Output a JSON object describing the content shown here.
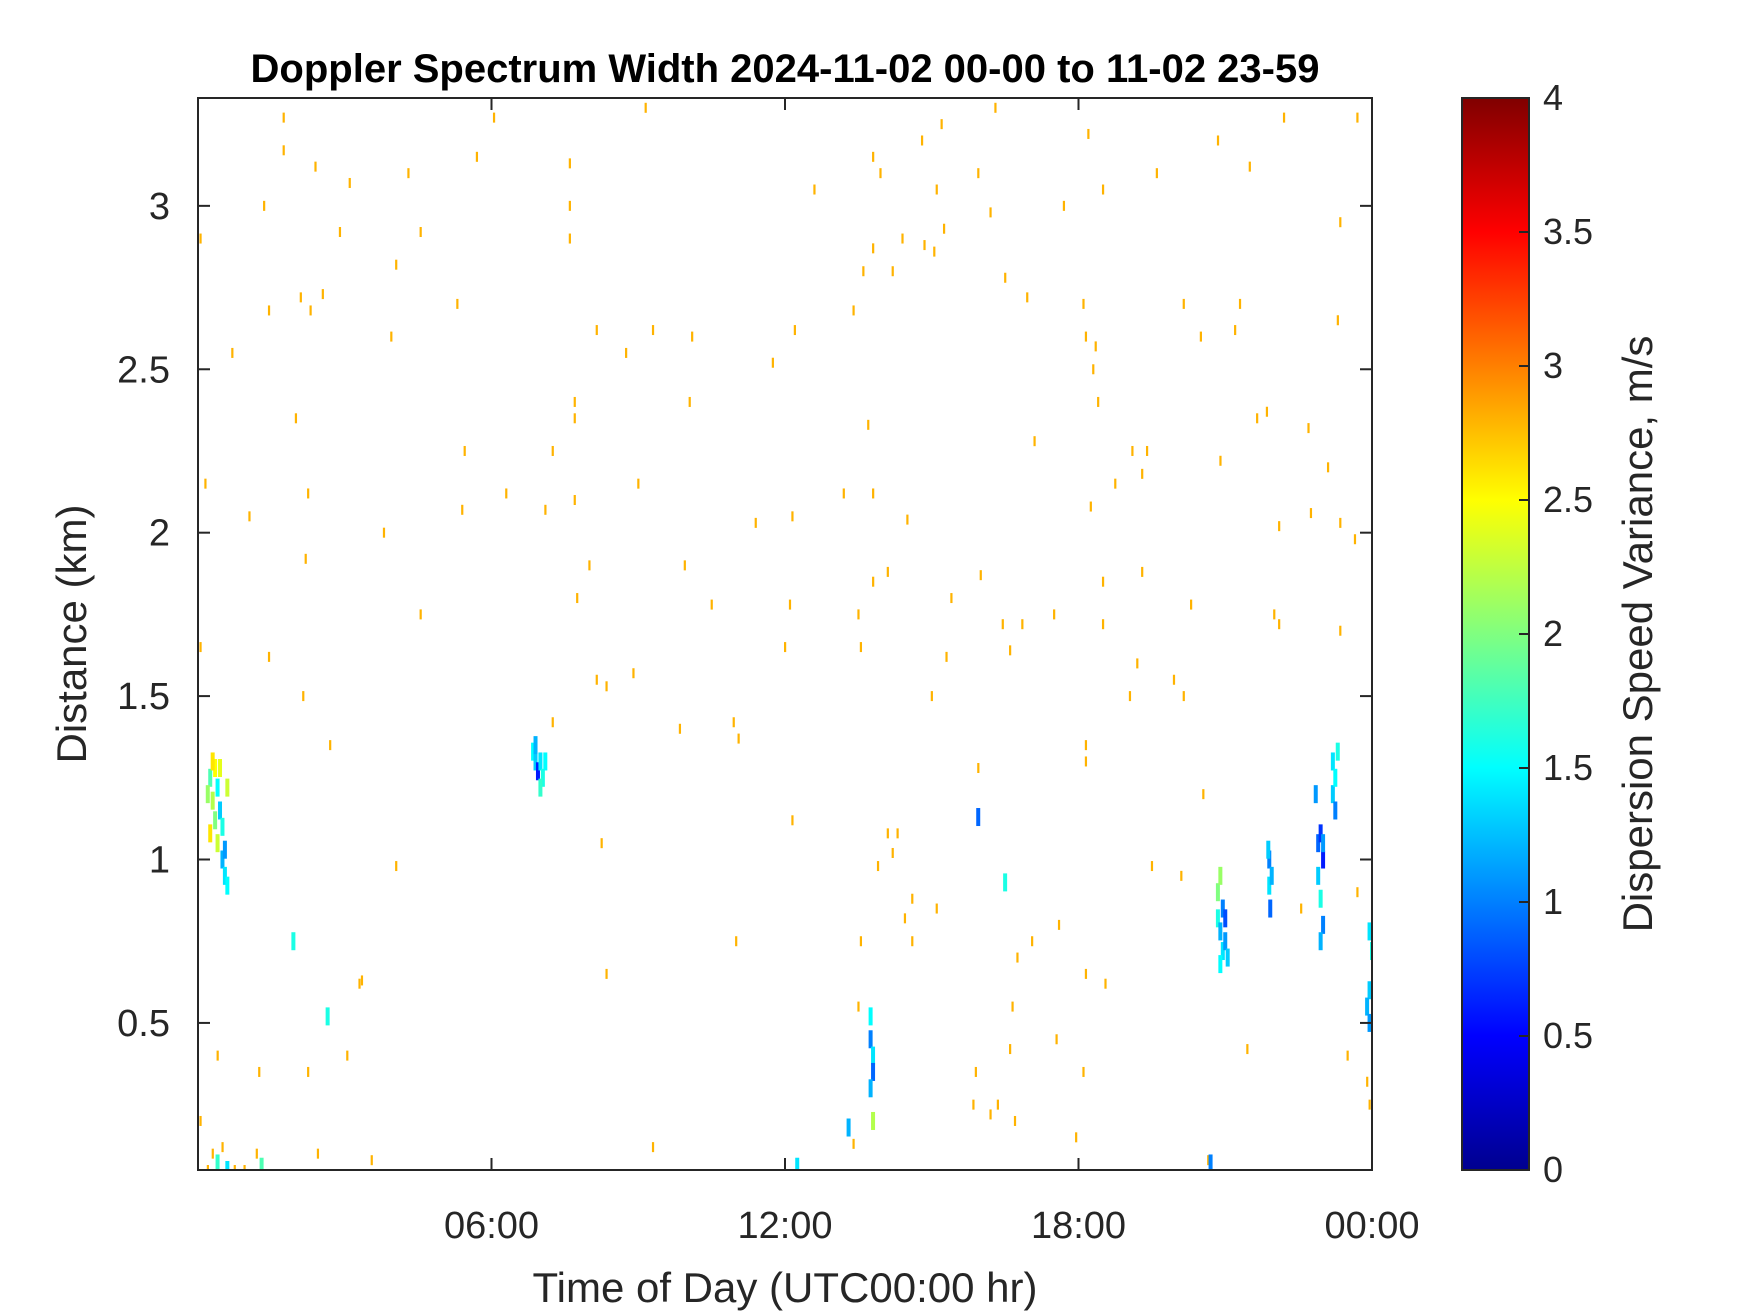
{
  "chart_data": {
    "type": "heatmap",
    "title": "Doppler Spectrum Width 2024-11-02 00-00 to 11-02 23-59",
    "xlabel": "Time of Day (UTC00:00 hr)",
    "ylabel": "Distance (km)",
    "xlim": [
      0,
      24
    ],
    "ylim": [
      0.05,
      3.33
    ],
    "x_ticks": [
      6,
      12,
      18,
      24
    ],
    "x_tick_labels": [
      "06:00",
      "12:00",
      "18:00",
      "00:00"
    ],
    "y_ticks": [
      0.5,
      1,
      1.5,
      2,
      2.5,
      3
    ],
    "y_tick_labels": [
      "0.5",
      "1",
      "1.5",
      "2",
      "2.5",
      "3"
    ],
    "grid": false,
    "colormap": "jet",
    "colorbar": {
      "label": "Dispersion Speed Variance, m/s",
      "range": [
        0,
        4
      ],
      "ticks": [
        0,
        0.5,
        1,
        1.5,
        2,
        2.5,
        3,
        3.5,
        4
      ],
      "tick_labels": [
        "0",
        "0.5",
        "1",
        "1.5",
        "2",
        "2.5",
        "3",
        "3.5",
        "4"
      ]
    },
    "scatter_value": 2.8,
    "scatter_points": [
      [
        1.75,
        3.27
      ],
      [
        1.75,
        3.17
      ],
      [
        1.35,
        3.0
      ],
      [
        2.4,
        3.12
      ],
      [
        3.1,
        3.07
      ],
      [
        2.9,
        2.92
      ],
      [
        4.3,
        3.1
      ],
      [
        4.55,
        2.92
      ],
      [
        4.05,
        2.82
      ],
      [
        5.7,
        3.15
      ],
      [
        6.05,
        3.27
      ],
      [
        7.6,
        3.13
      ],
      [
        7.6,
        3.0
      ],
      [
        7.6,
        2.9
      ],
      [
        9.15,
        3.3
      ],
      [
        12.6,
        3.05
      ],
      [
        13.8,
        3.15
      ],
      [
        13.95,
        3.1
      ],
      [
        14.8,
        3.2
      ],
      [
        15.2,
        3.25
      ],
      [
        15.1,
        3.05
      ],
      [
        15.95,
        3.1
      ],
      [
        16.3,
        3.3
      ],
      [
        14.4,
        2.9
      ],
      [
        14.85,
        2.88
      ],
      [
        15.25,
        2.93
      ],
      [
        16.2,
        2.98
      ],
      [
        17.7,
        3.0
      ],
      [
        18.2,
        3.22
      ],
      [
        18.5,
        3.05
      ],
      [
        19.6,
        3.1
      ],
      [
        20.85,
        3.2
      ],
      [
        21.5,
        3.12
      ],
      [
        22.2,
        3.27
      ],
      [
        23.7,
        3.27
      ],
      [
        23.35,
        2.95
      ],
      [
        0.05,
        2.9
      ],
      [
        1.45,
        2.68
      ],
      [
        2.1,
        2.72
      ],
      [
        2.3,
        2.68
      ],
      [
        2.55,
        2.73
      ],
      [
        3.95,
        2.6
      ],
      [
        5.3,
        2.7
      ],
      [
        8.15,
        2.62
      ],
      [
        9.3,
        2.62
      ],
      [
        10.1,
        2.6
      ],
      [
        8.75,
        2.55
      ],
      [
        11.75,
        2.52
      ],
      [
        12.2,
        2.62
      ],
      [
        13.4,
        2.68
      ],
      [
        13.6,
        2.8
      ],
      [
        13.8,
        2.87
      ],
      [
        14.2,
        2.8
      ],
      [
        15.05,
        2.86
      ],
      [
        16.5,
        2.78
      ],
      [
        16.95,
        2.72
      ],
      [
        18.15,
        2.6
      ],
      [
        18.1,
        2.7
      ],
      [
        18.35,
        2.57
      ],
      [
        20.15,
        2.7
      ],
      [
        20.5,
        2.6
      ],
      [
        21.3,
        2.7
      ],
      [
        21.2,
        2.62
      ],
      [
        23.3,
        2.65
      ],
      [
        0.7,
        2.55
      ],
      [
        2.0,
        2.35
      ],
      [
        7.7,
        2.4
      ],
      [
        7.7,
        2.35
      ],
      [
        10.05,
        2.4
      ],
      [
        13.7,
        2.33
      ],
      [
        18.3,
        2.5
      ],
      [
        18.4,
        2.4
      ],
      [
        17.1,
        2.28
      ],
      [
        19.4,
        2.25
      ],
      [
        20.9,
        2.22
      ],
      [
        21.85,
        2.37
      ],
      [
        22.7,
        2.32
      ],
      [
        21.65,
        2.35
      ],
      [
        5.45,
        2.25
      ],
      [
        7.25,
        2.25
      ],
      [
        1.05,
        2.05
      ],
      [
        2.25,
        2.12
      ],
      [
        0.15,
        2.15
      ],
      [
        3.8,
        2.0
      ],
      [
        5.4,
        2.07
      ],
      [
        6.3,
        2.12
      ],
      [
        7.1,
        2.07
      ],
      [
        7.7,
        2.1
      ],
      [
        9.0,
        2.15
      ],
      [
        11.4,
        2.03
      ],
      [
        12.15,
        2.05
      ],
      [
        13.2,
        2.12
      ],
      [
        13.8,
        2.12
      ],
      [
        14.5,
        2.04
      ],
      [
        18.25,
        2.08
      ],
      [
        18.75,
        2.15
      ],
      [
        19.1,
        2.25
      ],
      [
        19.3,
        2.18
      ],
      [
        22.1,
        2.02
      ],
      [
        22.75,
        2.06
      ],
      [
        23.1,
        2.2
      ],
      [
        23.35,
        2.03
      ],
      [
        23.65,
        1.98
      ],
      [
        24.0,
        2.13
      ],
      [
        2.2,
        1.92
      ],
      [
        4.55,
        1.75
      ],
      [
        8.0,
        1.9
      ],
      [
        7.75,
        1.8
      ],
      [
        9.95,
        1.9
      ],
      [
        10.5,
        1.78
      ],
      [
        12.1,
        1.78
      ],
      [
        13.5,
        1.75
      ],
      [
        13.8,
        1.85
      ],
      [
        14.1,
        1.88
      ],
      [
        15.4,
        1.8
      ],
      [
        16.0,
        1.87
      ],
      [
        16.85,
        1.72
      ],
      [
        17.5,
        1.75
      ],
      [
        18.5,
        1.72
      ],
      [
        18.5,
        1.85
      ],
      [
        19.3,
        1.88
      ],
      [
        20.3,
        1.78
      ],
      [
        22.0,
        1.75
      ],
      [
        22.1,
        1.72
      ],
      [
        23.35,
        1.7
      ],
      [
        0.05,
        1.65
      ],
      [
        1.45,
        1.62
      ],
      [
        12.0,
        1.65
      ],
      [
        13.55,
        1.65
      ],
      [
        15.3,
        1.62
      ],
      [
        16.6,
        1.64
      ],
      [
        16.45,
        1.72
      ],
      [
        19.2,
        1.6
      ],
      [
        8.15,
        1.55
      ],
      [
        8.35,
        1.53
      ],
      [
        8.9,
        1.57
      ],
      [
        2.15,
        1.5
      ],
      [
        10.95,
        1.42
      ],
      [
        15.0,
        1.5
      ],
      [
        19.05,
        1.5
      ],
      [
        19.95,
        1.55
      ],
      [
        20.15,
        1.5
      ],
      [
        9.85,
        1.4
      ],
      [
        11.05,
        1.37
      ],
      [
        7.25,
        1.42
      ],
      [
        2.7,
        1.35
      ],
      [
        18.15,
        1.35
      ],
      [
        18.15,
        1.3
      ],
      [
        15.95,
        1.28
      ],
      [
        12.15,
        1.12
      ],
      [
        20.55,
        1.2
      ],
      [
        8.25,
        1.05
      ],
      [
        4.05,
        0.98
      ],
      [
        19.5,
        0.98
      ],
      [
        20.1,
        0.95
      ],
      [
        13.9,
        0.98
      ],
      [
        14.1,
        1.08
      ],
      [
        14.3,
        1.08
      ],
      [
        14.2,
        1.02
      ],
      [
        14.45,
        0.82
      ],
      [
        14.6,
        0.88
      ],
      [
        14.6,
        0.75
      ],
      [
        13.55,
        0.75
      ],
      [
        11.0,
        0.75
      ],
      [
        15.1,
        0.85
      ],
      [
        17.05,
        0.75
      ],
      [
        17.6,
        0.8
      ],
      [
        18.15,
        0.65
      ],
      [
        18.55,
        0.62
      ],
      [
        23.7,
        0.9
      ],
      [
        22.55,
        0.85
      ],
      [
        8.35,
        0.65
      ],
      [
        3.3,
        0.62
      ],
      [
        3.35,
        0.63
      ],
      [
        13.5,
        0.55
      ],
      [
        16.75,
        0.7
      ],
      [
        16.65,
        0.55
      ],
      [
        21.45,
        0.42
      ],
      [
        17.55,
        0.45
      ],
      [
        18.1,
        0.35
      ],
      [
        16.6,
        0.42
      ],
      [
        15.9,
        0.35
      ],
      [
        2.25,
        0.35
      ],
      [
        1.25,
        0.35
      ],
      [
        3.05,
        0.4
      ],
      [
        0.4,
        0.4
      ],
      [
        15.85,
        0.25
      ],
      [
        16.2,
        0.22
      ],
      [
        16.35,
        0.25
      ],
      [
        16.7,
        0.2
      ],
      [
        17.95,
        0.15
      ],
      [
        9.3,
        0.12
      ],
      [
        13.4,
        0.13
      ],
      [
        2.45,
        0.1
      ],
      [
        3.55,
        0.08
      ],
      [
        20.65,
        0.08
      ],
      [
        23.5,
        0.4
      ],
      [
        23.9,
        0.32
      ],
      [
        23.95,
        0.25
      ],
      [
        24.0,
        0.1
      ],
      [
        0.05,
        0.2
      ],
      [
        0.3,
        0.1
      ],
      [
        0.5,
        0.12
      ],
      [
        0.75,
        0.05
      ],
      [
        0.95,
        0.05
      ],
      [
        1.2,
        0.1
      ],
      [
        0.2,
        0.05
      ],
      [
        0.6,
        0.06
      ]
    ],
    "echo_cells": [
      [
        0.25,
        1.25,
        1.8
      ],
      [
        0.3,
        1.18,
        2.2
      ],
      [
        0.35,
        1.12,
        2.0
      ],
      [
        0.4,
        1.22,
        1.5
      ],
      [
        0.4,
        1.05,
        2.3
      ],
      [
        0.45,
        1.28,
        2.4
      ],
      [
        0.45,
        1.15,
        1.3
      ],
      [
        0.5,
        1.1,
        1.6
      ],
      [
        0.5,
        1.0,
        1.2
      ],
      [
        0.55,
        0.95,
        1.4
      ],
      [
        0.55,
        1.03,
        1.1
      ],
      [
        0.6,
        0.92,
        1.5
      ],
      [
        0.6,
        1.22,
        2.3
      ],
      [
        0.35,
        1.28,
        2.5
      ],
      [
        0.3,
        1.3,
        2.6
      ],
      [
        0.2,
        1.2,
        2.1
      ],
      [
        0.25,
        1.08,
        2.6
      ],
      [
        6.85,
        1.33,
        1.5
      ],
      [
        6.9,
        1.3,
        1.3
      ],
      [
        6.95,
        1.27,
        0.6
      ],
      [
        7.0,
        1.3,
        1.4
      ],
      [
        7.05,
        1.25,
        1.6
      ],
      [
        7.1,
        1.3,
        1.5
      ],
      [
        6.9,
        1.35,
        1.2
      ],
      [
        7.0,
        1.22,
        1.7
      ],
      [
        1.95,
        0.75,
        1.6
      ],
      [
        2.65,
        0.52,
        1.6
      ],
      [
        15.95,
        1.13,
        0.9
      ],
      [
        16.5,
        0.93,
        1.6
      ],
      [
        13.75,
        0.52,
        1.5
      ],
      [
        13.75,
        0.45,
        1.0
      ],
      [
        13.8,
        0.4,
        1.4
      ],
      [
        13.8,
        0.35,
        0.9
      ],
      [
        13.75,
        0.3,
        1.2
      ],
      [
        13.8,
        0.2,
        2.2
      ],
      [
        13.3,
        0.18,
        1.2
      ],
      [
        20.7,
        0.07,
        1.0
      ],
      [
        12.25,
        0.06,
        1.4
      ],
      [
        0.4,
        0.07,
        1.7
      ],
      [
        0.6,
        0.05,
        1.4
      ],
      [
        1.3,
        0.06,
        1.8
      ],
      [
        20.85,
        0.9,
        2.0
      ],
      [
        20.85,
        0.82,
        1.6
      ],
      [
        20.9,
        0.78,
        1.2
      ],
      [
        20.95,
        0.85,
        1.0
      ],
      [
        20.95,
        0.72,
        1.4
      ],
      [
        21.0,
        0.82,
        0.8
      ],
      [
        21.0,
        0.75,
        1.1
      ],
      [
        21.05,
        0.7,
        1.3
      ],
      [
        20.9,
        0.68,
        1.5
      ],
      [
        20.9,
        0.95,
        2.1
      ],
      [
        21.9,
        1.0,
        1.0
      ],
      [
        21.9,
        0.92,
        1.4
      ],
      [
        21.92,
        0.85,
        0.9
      ],
      [
        21.95,
        0.95,
        1.2
      ],
      [
        21.88,
        1.03,
        1.3
      ],
      [
        22.85,
        1.2,
        1.1
      ],
      [
        22.9,
        1.05,
        0.9
      ],
      [
        22.9,
        0.95,
        1.3
      ],
      [
        22.95,
        1.08,
        0.7
      ],
      [
        22.95,
        0.88,
        1.6
      ],
      [
        23.0,
        1.0,
        0.6
      ],
      [
        23.0,
        0.8,
        1.0
      ],
      [
        22.95,
        0.75,
        1.2
      ],
      [
        23.0,
        1.05,
        1.1
      ],
      [
        23.2,
        1.3,
        1.4
      ],
      [
        23.2,
        1.2,
        1.3
      ],
      [
        23.25,
        1.25,
        1.5
      ],
      [
        23.25,
        1.15,
        1.0
      ],
      [
        23.3,
        1.33,
        1.6
      ],
      [
        23.95,
        0.78,
        1.4
      ],
      [
        24.0,
        0.72,
        1.6
      ],
      [
        23.95,
        0.6,
        1.3
      ],
      [
        23.9,
        0.55,
        1.2
      ],
      [
        23.95,
        0.5,
        1.1
      ]
    ]
  }
}
